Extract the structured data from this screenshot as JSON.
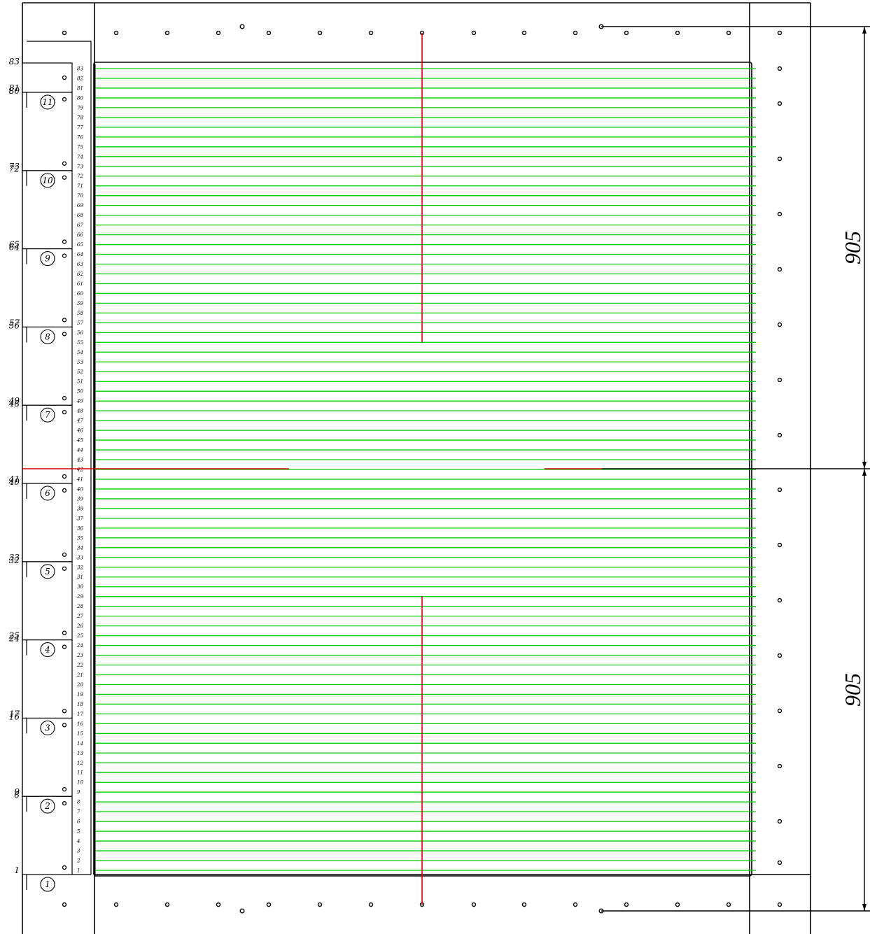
{
  "rows": [
    "1",
    "2",
    "3",
    "4",
    "5",
    "6",
    "7",
    "8",
    "9",
    "10",
    "11",
    "12",
    "13",
    "14",
    "15",
    "16",
    "17",
    "18",
    "19",
    "20",
    "21",
    "22",
    "23",
    "24",
    "25",
    "26",
    "27",
    "28",
    "29",
    "30",
    "31",
    "32",
    "33",
    "34",
    "35",
    "36",
    "37",
    "38",
    "39",
    "40",
    "41",
    "42",
    "43",
    "44",
    "45",
    "46",
    "47",
    "48",
    "49",
    "50",
    "51",
    "52",
    "53",
    "54",
    "55",
    "56",
    "57",
    "58",
    "59",
    "60",
    "61",
    "62",
    "63",
    "64",
    "65",
    "66",
    "67",
    "68",
    "69",
    "70",
    "71",
    "72",
    "73",
    "74",
    "75",
    "76",
    "77",
    "78",
    "79",
    "80",
    "81",
    "82",
    "83"
  ],
  "segments": [
    {
      "number": "1",
      "low": "1",
      "high": "8"
    },
    {
      "number": "2",
      "low": "9",
      "high": "16"
    },
    {
      "number": "3",
      "low": "17",
      "high": "24"
    },
    {
      "number": "4",
      "low": "25",
      "high": "32"
    },
    {
      "number": "5",
      "low": "33",
      "high": "40"
    },
    {
      "number": "6",
      "low": "41",
      "high": "48"
    },
    {
      "number": "7",
      "low": "49",
      "high": "56"
    },
    {
      "number": "8",
      "low": "57",
      "high": "64"
    },
    {
      "number": "9",
      "low": "65",
      "high": "72"
    },
    {
      "number": "10",
      "low": "73",
      "high": "80"
    },
    {
      "number": "11",
      "low": "81",
      "high": "83"
    }
  ],
  "dimensions": {
    "upper": "905",
    "lower": "905"
  },
  "colors": {
    "line": "#000000",
    "grid": "#00cc00",
    "axis": "#dd0000"
  }
}
